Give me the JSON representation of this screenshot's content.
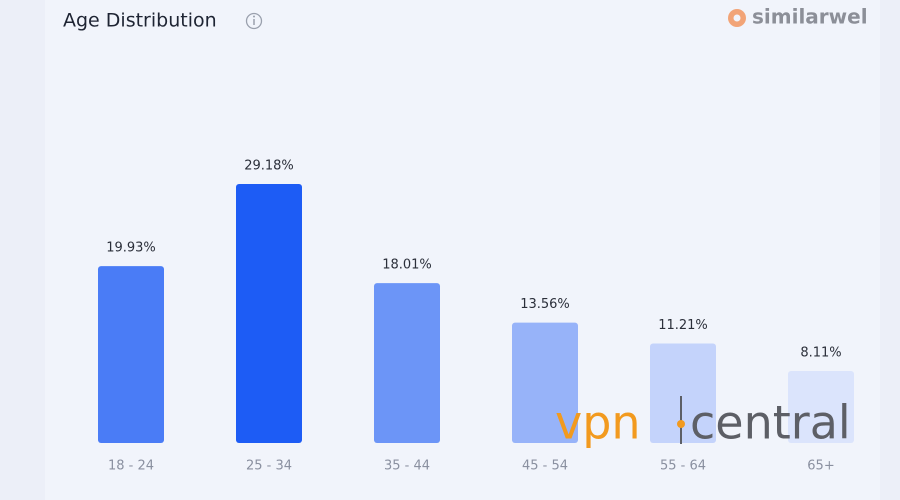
{
  "chart_data": {
    "type": "bar",
    "title": "Age Distribution",
    "brand": "similarwel",
    "watermark": [
      "vpn",
      "central"
    ],
    "categories": [
      "18 - 24",
      "25 - 34",
      "35 - 44",
      "45 - 54",
      "55 - 64",
      "65+"
    ],
    "values": [
      19.93,
      29.18,
      18.01,
      13.56,
      11.21,
      8.11
    ],
    "value_labels": [
      "19.93%",
      "29.18%",
      "18.01%",
      "13.56%",
      "11.21%",
      "8.11%"
    ],
    "colors": [
      "#4a7cf6",
      "#1d5cf5",
      "#6c95f7",
      "#97b3f9",
      "#c4d3fb",
      "#dbe4fc"
    ]
  }
}
